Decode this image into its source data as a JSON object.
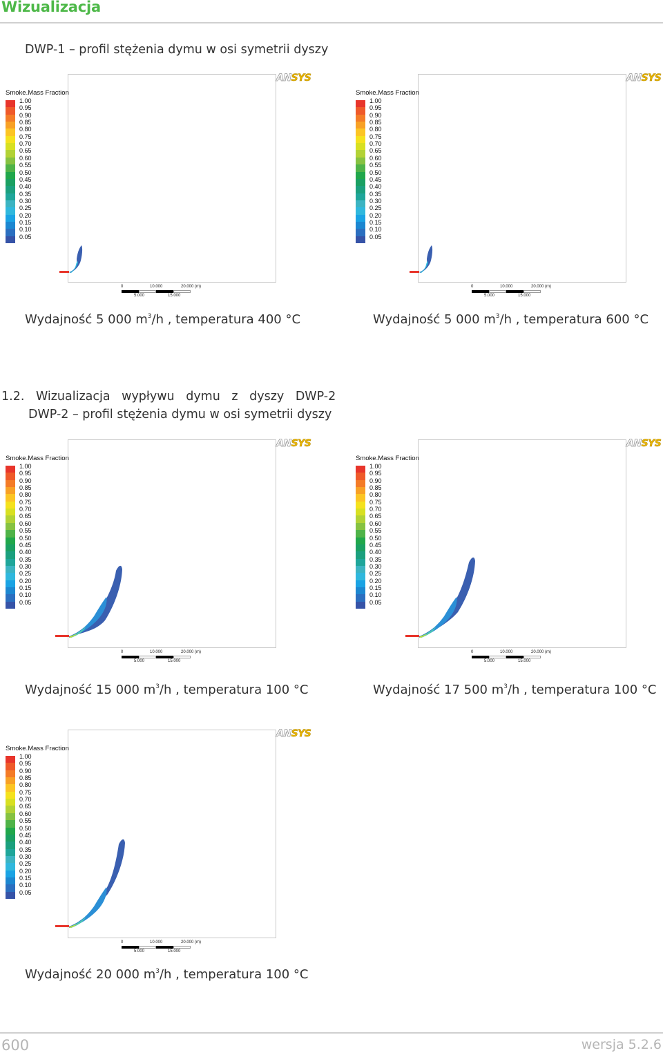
{
  "header": {
    "title": "Wizualizacja"
  },
  "section1": {
    "subtitle": "DWP-1 – profil stężenia dymu w osi symetrii dyszy"
  },
  "section2": {
    "title": "1.2. Wizualizacja wypływu dymu z dyszy DWP-2",
    "subtitle": "DWP-2 – profil stężenia dymu w osi symetrii dyszy"
  },
  "plot_common": {
    "logo_an": "AN",
    "logo_sys": "SYS",
    "legend_title": "Smoke.Mass Fraction",
    "legend_values": [
      "1.00",
      "0.95",
      "0.90",
      "0.85",
      "0.80",
      "0.75",
      "0.70",
      "0.65",
      "0.60",
      "0.55",
      "0.50",
      "0.45",
      "0.40",
      "0.35",
      "0.30",
      "0.25",
      "0.20",
      "0.15",
      "0.10",
      "0.05"
    ],
    "legend_colors": [
      "#e8352b",
      "#ef5a2a",
      "#f47c27",
      "#f8a125",
      "#fcc524",
      "#f5e21d",
      "#d8e021",
      "#b2d235",
      "#86c241",
      "#4fb348",
      "#20a74b",
      "#1aa062",
      "#1ba07e",
      "#1fa69a",
      "#3cb4c2",
      "#30b8dd",
      "#1aa3e4",
      "#1c87d1",
      "#2b6fc0",
      "#3653a7"
    ],
    "scale_labels": {
      "zero": "0",
      "ten": "10.000",
      "twenty": "20.000",
      "unit": "(m)",
      "five": "5.000",
      "fifteen": "15.000"
    }
  },
  "panels": [
    {
      "caption_prefix": "Wydajność 5 000 m",
      "caption_sup": "3",
      "caption_suffix": "/h , temperatura 400 °C"
    },
    {
      "caption_prefix": "Wydajność 5 000 m",
      "caption_sup": "3",
      "caption_suffix": "/h , temperatura 600 °C"
    },
    {
      "caption_prefix": "Wydajność 15 000 m",
      "caption_sup": "3",
      "caption_suffix": "/h , temperatura 100 °C"
    },
    {
      "caption_prefix": "Wydajność 17 500 m",
      "caption_sup": "3",
      "caption_suffix": "/h , temperatura 100 °C"
    },
    {
      "caption_prefix": "Wydajność 20 000 m",
      "caption_sup": "3",
      "caption_suffix": "/h , temperatura 100 °C"
    }
  ],
  "footer": {
    "page_number": "600",
    "version": "wersja 5.2.6"
  }
}
